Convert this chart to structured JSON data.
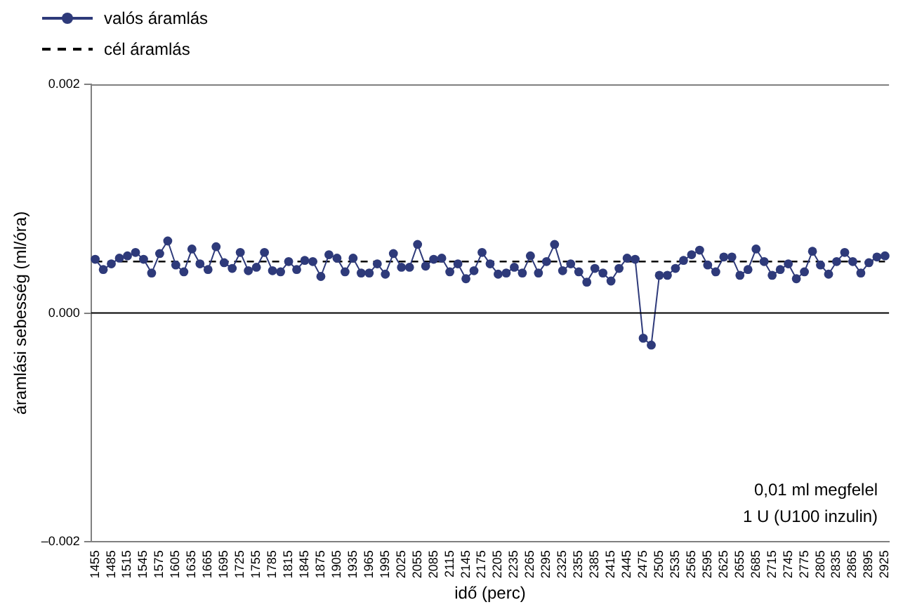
{
  "chart_data": {
    "type": "line",
    "xlabel": "idő (perc)",
    "ylabel": "áramlási sebesség (ml/óra)",
    "categories": [
      "1455",
      null,
      "1485",
      null,
      "1515",
      null,
      "1545",
      null,
      "1575",
      null,
      "1605",
      null,
      "1635",
      null,
      "1665",
      null,
      "1695",
      null,
      "1725",
      null,
      "1755",
      null,
      "1785",
      null,
      "1815",
      null,
      "1845",
      null,
      "1875",
      null,
      "1905",
      null,
      "1935",
      null,
      "1965",
      null,
      "1995",
      null,
      "2025",
      null,
      "2055",
      null,
      "2085",
      null,
      "2115",
      null,
      "2145",
      null,
      "2175",
      null,
      "2205",
      null,
      "2235",
      null,
      "2265",
      null,
      "2295",
      null,
      "2325",
      null,
      "2355",
      null,
      "2385",
      null,
      "2415",
      null,
      "2445",
      null,
      "2475",
      null,
      "2505",
      null,
      "2535",
      null,
      "2565",
      null,
      "2595",
      null,
      "2625",
      null,
      "2655",
      null,
      "2685",
      null,
      "2715",
      null,
      "2745",
      null,
      "2775",
      null,
      "2805",
      null,
      "2835",
      null,
      "2865",
      null,
      "2895",
      null,
      "2925"
    ],
    "series": [
      {
        "name": "valós áramlás",
        "color": "#2e3a7a",
        "marker": "circle",
        "line_style": "solid",
        "values": [
          0.00047,
          0.00038,
          0.00043,
          0.00048,
          0.0005,
          0.00053,
          0.00047,
          0.00035,
          0.00052,
          0.00063,
          0.00042,
          0.00036,
          0.00056,
          0.00043,
          0.00038,
          0.00058,
          0.00044,
          0.00039,
          0.00053,
          0.00037,
          0.0004,
          0.00053,
          0.00037,
          0.00036,
          0.00045,
          0.00038,
          0.00046,
          0.00045,
          0.00032,
          0.00051,
          0.00048,
          0.00036,
          0.00048,
          0.00035,
          0.00035,
          0.00043,
          0.00034,
          0.00052,
          0.0004,
          0.0004,
          0.0006,
          0.00041,
          0.00047,
          0.00048,
          0.00036,
          0.00043,
          0.0003,
          0.00037,
          0.00053,
          0.00043,
          0.00034,
          0.00035,
          0.0004,
          0.00035,
          0.0005,
          0.00035,
          0.00045,
          0.0006,
          0.00037,
          0.00043,
          0.00036,
          0.00027,
          0.00039,
          0.00035,
          0.00028,
          0.00039,
          0.00048,
          0.00047,
          -0.00022,
          -0.00028,
          0.00033,
          0.00033,
          0.00039,
          0.00046,
          0.00051,
          0.00055,
          0.00042,
          0.00036,
          0.00049,
          0.00049,
          0.00033,
          0.00038,
          0.00056,
          0.00045,
          0.00033,
          0.00038,
          0.00043,
          0.0003,
          0.00036,
          0.00054,
          0.00042,
          0.00034,
          0.00045,
          0.00053,
          0.00045,
          0.00035,
          0.00044,
          0.00049,
          0.0005
        ]
      },
      {
        "name": "cél áramlás",
        "color": "#000000",
        "marker": "none",
        "line_style": "dashed",
        "values": [
          0.00045,
          0.00045,
          0.00045,
          0.00045,
          0.00045,
          0.00045,
          0.00045,
          0.00045,
          0.00045,
          0.00045,
          0.00045,
          0.00045,
          0.00045,
          0.00045,
          0.00045,
          0.00045,
          0.00045,
          0.00045,
          0.00045,
          0.00045,
          0.00045,
          0.00045,
          0.00045,
          0.00045,
          0.00045,
          0.00045,
          0.00045,
          0.00045,
          0.00045,
          0.00045,
          0.00045,
          0.00045,
          0.00045,
          0.00045,
          0.00045,
          0.00045,
          0.00045,
          0.00045,
          0.00045,
          0.00045,
          0.00045,
          0.00045,
          0.00045,
          0.00045,
          0.00045,
          0.00045,
          0.00045,
          0.00045,
          0.00045,
          0.00045,
          0.00045,
          0.00045,
          0.00045,
          0.00045,
          0.00045,
          0.00045,
          0.00045,
          0.00045,
          0.00045,
          0.00045,
          0.00045,
          0.00045,
          0.00045,
          0.00045,
          0.00045,
          0.00045,
          0.00045,
          0.00045,
          0.00045,
          0.00045,
          0.00045,
          0.00045,
          0.00045,
          0.00045,
          0.00045,
          0.00045,
          0.00045,
          0.00045,
          0.00045,
          0.00045,
          0.00045,
          0.00045,
          0.00045,
          0.00045,
          0.00045,
          0.00045,
          0.00045,
          0.00045,
          0.00045,
          0.00045,
          0.00045,
          0.00045,
          0.00045,
          0.00045,
          0.00045,
          0.00045,
          0.00045,
          0.00045,
          0.00045
        ]
      }
    ],
    "ylim": [
      -0.002,
      0.002
    ],
    "yticks": [
      {
        "value": -0.002,
        "label": "–0.002"
      },
      {
        "value": 0,
        "label": "0.000"
      },
      {
        "value": 0.002,
        "label": "0.002"
      }
    ],
    "ref_lines": [
      {
        "axis": "y",
        "value": 0,
        "color": "#000000"
      }
    ],
    "annotations": [
      "0,01 ml megfelel",
      "1 U (U100 inzulin)"
    ],
    "grid": false,
    "legend": "top left"
  }
}
